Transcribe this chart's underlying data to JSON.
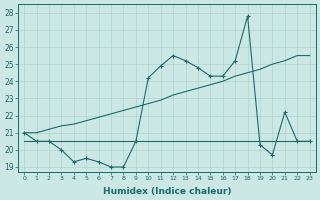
{
  "xlabel": "Humidex (Indice chaleur)",
  "bg_color": "#cce8e5",
  "line_color": "#1a6b6b",
  "grid_color": "#afd4d0",
  "xlim": [
    -0.5,
    23.5
  ],
  "ylim": [
    18.7,
    28.5
  ],
  "yticks": [
    19,
    20,
    21,
    22,
    23,
    24,
    25,
    26,
    27,
    28
  ],
  "xticks": [
    0,
    1,
    2,
    3,
    4,
    5,
    6,
    7,
    8,
    9,
    10,
    11,
    12,
    13,
    14,
    15,
    16,
    17,
    18,
    19,
    20,
    21,
    22,
    23
  ],
  "series1_x": [
    0,
    1,
    2,
    3,
    4,
    5,
    6,
    7,
    8,
    9,
    10,
    11,
    12,
    13,
    14,
    15,
    16,
    17,
    18,
    19,
    20,
    21,
    22,
    23
  ],
  "series1_y": [
    21.0,
    20.5,
    20.5,
    20.0,
    19.3,
    19.5,
    19.3,
    19.0,
    19.0,
    20.5,
    24.2,
    24.9,
    25.5,
    25.2,
    24.8,
    24.3,
    24.3,
    25.2,
    27.8,
    20.3,
    19.7,
    22.2,
    20.5,
    20.5
  ],
  "series2_x": [
    0,
    1,
    2,
    3,
    4,
    5,
    6,
    7,
    8,
    9,
    10,
    11,
    12,
    13,
    14,
    15,
    16,
    17,
    18,
    19,
    20,
    21,
    22,
    23
  ],
  "series2_y": [
    20.5,
    20.5,
    20.5,
    20.5,
    20.5,
    20.5,
    20.5,
    20.5,
    20.5,
    20.5,
    20.5,
    20.5,
    20.5,
    20.5,
    20.5,
    20.5,
    20.5,
    20.5,
    20.5,
    20.5,
    20.5,
    20.5,
    20.5,
    20.5
  ],
  "series3_x": [
    0,
    1,
    2,
    3,
    4,
    5,
    6,
    7,
    8,
    9,
    10,
    11,
    12,
    13,
    14,
    15,
    16,
    17,
    18,
    19,
    20,
    21,
    22,
    23
  ],
  "series3_y": [
    21.0,
    21.0,
    21.2,
    21.4,
    21.5,
    21.7,
    21.9,
    22.1,
    22.3,
    22.5,
    22.7,
    22.9,
    23.2,
    23.4,
    23.6,
    23.8,
    24.0,
    24.3,
    24.5,
    24.7,
    25.0,
    25.2,
    25.5,
    25.5
  ]
}
